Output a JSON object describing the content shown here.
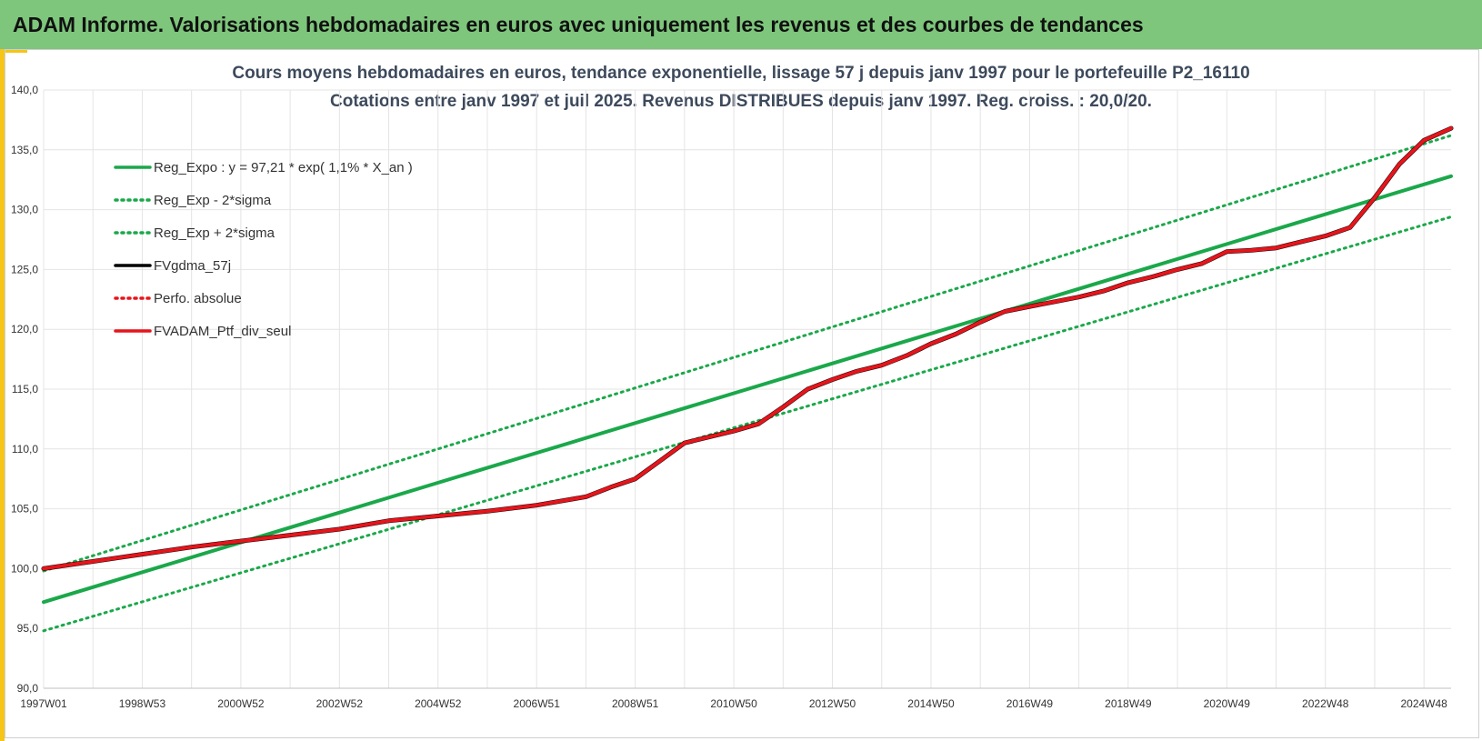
{
  "banner": {
    "title": "ADAM Informe. Valorisations hebdomadaires en euros avec uniquement les revenus et des courbes de tendances"
  },
  "colors": {
    "banner_bg": "#7dc67b",
    "accent": "#f5c518",
    "trend": "#1aa84a",
    "smoothed": "#000000",
    "portfolio": "#e8141b",
    "grid": "#e4e4e4"
  },
  "chart_data": {
    "type": "line",
    "title": "Cours moyens hebdomadaires  en euros, tendance exponentielle, lissage 57 j depuis janv 1997 pour le portefeuille P2_16110",
    "subtitle": "Cotations  entre janv 1997 et juil 2025. Revenus DISTRIBUES depuis janv 1997. Reg. croiss. : 20,0/20.",
    "xlabel": "",
    "ylabel": "",
    "ylim": [
      90,
      140
    ],
    "xlim": [
      1997.0,
      2025.55
    ],
    "grid": true,
    "legend_position": "top-left",
    "yticks": [
      "90,0",
      "95,0",
      "100,0",
      "105,0",
      "110,0",
      "115,0",
      "120,0",
      "125,0",
      "130,0",
      "135,0",
      "140,0"
    ],
    "xticks": [
      {
        "label": "1997W01",
        "x": 1997.0
      },
      {
        "label": "1998W53",
        "x": 1999.0
      },
      {
        "label": "2000W52",
        "x": 2001.0
      },
      {
        "label": "2002W52",
        "x": 2003.0
      },
      {
        "label": "2004W52",
        "x": 2005.0
      },
      {
        "label": "2006W51",
        "x": 2007.0
      },
      {
        "label": "2008W51",
        "x": 2009.0
      },
      {
        "label": "2010W50",
        "x": 2011.0
      },
      {
        "label": "2012W50",
        "x": 2013.0
      },
      {
        "label": "2014W50",
        "x": 2015.0
      },
      {
        "label": "2016W49",
        "x": 2017.0
      },
      {
        "label": "2018W49",
        "x": 2019.0
      },
      {
        "label": "2020W49",
        "x": 2021.0
      },
      {
        "label": "2022W48",
        "x": 2023.0
      },
      {
        "label": "2024W48",
        "x": 2025.0
      }
    ],
    "series": [
      {
        "name": "Reg_Expo : y = 97,21 * exp( 1,1% *  X_an )",
        "style": "solid-green",
        "x": [
          1997.0,
          2025.55
        ],
        "y": [
          97.2,
          132.8
        ]
      },
      {
        "name": "Reg_Exp - 2*sigma",
        "style": "dotted-green",
        "x": [
          1997.0,
          2025.55
        ],
        "y": [
          94.8,
          129.4
        ]
      },
      {
        "name": "Reg_Exp + 2*sigma",
        "style": "dotted-green",
        "x": [
          1997.0,
          2025.55
        ],
        "y": [
          99.8,
          136.2
        ]
      },
      {
        "name": "FVgdma_57j",
        "style": "solid-black",
        "x": [
          1997.0,
          1998.0,
          1999.0,
          2000.0,
          2001.0,
          2002.0,
          2003.0,
          2004.0,
          2005.0,
          2006.0,
          2007.0,
          2008.0,
          2008.5,
          2009.0,
          2009.5,
          2010.0,
          2010.5,
          2011.0,
          2011.5,
          2012.0,
          2012.5,
          2013.0,
          2013.5,
          2014.0,
          2014.5,
          2015.0,
          2015.5,
          2016.0,
          2016.5,
          2017.0,
          2017.5,
          2018.0,
          2018.5,
          2019.0,
          2019.5,
          2020.0,
          2020.5,
          2021.0,
          2021.5,
          2022.0,
          2022.5,
          2023.0,
          2023.5,
          2024.0,
          2024.5,
          2025.0,
          2025.55
        ],
        "y": [
          100.0,
          100.6,
          101.2,
          101.8,
          102.3,
          102.8,
          103.3,
          104.0,
          104.4,
          104.8,
          105.3,
          106.0,
          106.8,
          107.5,
          109.0,
          110.5,
          111.0,
          111.5,
          112.1,
          113.5,
          115.0,
          115.8,
          116.5,
          117.0,
          117.8,
          118.8,
          119.6,
          120.6,
          121.5,
          121.9,
          122.3,
          122.7,
          123.2,
          123.9,
          124.4,
          125.0,
          125.5,
          126.5,
          126.6,
          126.8,
          127.3,
          127.8,
          128.5,
          131.0,
          133.8,
          135.8,
          136.8
        ]
      },
      {
        "name": "Perfo. absolue",
        "style": "dotted-red",
        "x": [
          1997.0,
          1998.0,
          1999.0,
          2000.0,
          2001.0,
          2002.0,
          2003.0,
          2004.0,
          2005.0,
          2006.0,
          2007.0,
          2008.0,
          2008.5,
          2009.0,
          2009.5,
          2010.0,
          2010.5,
          2011.0,
          2011.5,
          2012.0,
          2012.5,
          2013.0,
          2013.5,
          2014.0,
          2014.5,
          2015.0,
          2015.5,
          2016.0,
          2016.5,
          2017.0,
          2017.5,
          2018.0,
          2018.5,
          2019.0,
          2019.5,
          2020.0,
          2020.5,
          2021.0,
          2021.5,
          2022.0,
          2022.5,
          2023.0,
          2023.5,
          2024.0,
          2024.5,
          2025.0,
          2025.55
        ],
        "y": [
          100.0,
          100.6,
          101.2,
          101.8,
          102.3,
          102.8,
          103.3,
          104.0,
          104.4,
          104.8,
          105.3,
          106.0,
          106.8,
          107.5,
          109.0,
          110.5,
          111.0,
          111.5,
          112.1,
          113.5,
          115.0,
          115.8,
          116.5,
          117.0,
          117.8,
          118.8,
          119.6,
          120.6,
          121.5,
          121.9,
          122.3,
          122.7,
          123.2,
          123.9,
          124.4,
          125.0,
          125.5,
          126.5,
          126.6,
          126.8,
          127.3,
          127.8,
          128.5,
          131.0,
          133.8,
          135.8,
          136.8
        ]
      },
      {
        "name": "FVADAM_Ptf_div_seul",
        "style": "solid-red",
        "x": [
          1997.0,
          1998.0,
          1999.0,
          2000.0,
          2001.0,
          2002.0,
          2003.0,
          2004.0,
          2005.0,
          2006.0,
          2007.0,
          2008.0,
          2008.5,
          2009.0,
          2009.5,
          2010.0,
          2010.5,
          2011.0,
          2011.5,
          2012.0,
          2012.5,
          2013.0,
          2013.5,
          2014.0,
          2014.5,
          2015.0,
          2015.5,
          2016.0,
          2016.5,
          2017.0,
          2017.5,
          2018.0,
          2018.5,
          2019.0,
          2019.5,
          2020.0,
          2020.5,
          2021.0,
          2021.5,
          2022.0,
          2022.5,
          2023.0,
          2023.5,
          2024.0,
          2024.5,
          2025.0,
          2025.55
        ],
        "y": [
          100.0,
          100.6,
          101.2,
          101.8,
          102.3,
          102.8,
          103.3,
          104.0,
          104.4,
          104.8,
          105.3,
          106.0,
          106.8,
          107.5,
          109.0,
          110.5,
          111.0,
          111.5,
          112.1,
          113.5,
          115.0,
          115.8,
          116.5,
          117.0,
          117.8,
          118.8,
          119.6,
          120.6,
          121.5,
          121.9,
          122.3,
          122.7,
          123.2,
          123.9,
          124.4,
          125.0,
          125.5,
          126.5,
          126.6,
          126.8,
          127.3,
          127.8,
          128.5,
          131.0,
          133.8,
          135.8,
          136.8
        ]
      }
    ]
  }
}
